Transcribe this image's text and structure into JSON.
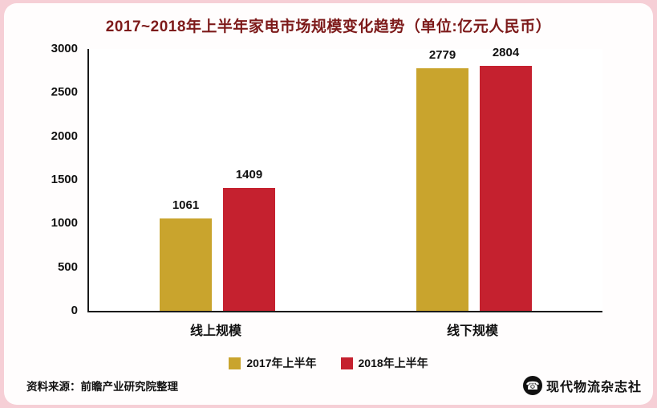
{
  "page": {
    "background": "#f6cfd6",
    "panel_background": "#fffdfd"
  },
  "chart_data": {
    "type": "bar",
    "title": "2017~2018年上半年家电市场规模变化趋势（单位:亿元人民币）",
    "title_color": "#7d1a1a",
    "categories": [
      "线上规模",
      "线下规模"
    ],
    "series": [
      {
        "name": "2017年上半年",
        "color": "#c9a42d",
        "values": [
          1061,
          2779
        ]
      },
      {
        "name": "2018年上半年",
        "color": "#c5212f",
        "values": [
          1409,
          2804
        ]
      }
    ],
    "ylim": [
      0,
      3000
    ],
    "yticks": [
      0,
      500,
      1000,
      1500,
      2000,
      2500,
      3000
    ],
    "grid": false,
    "legend_position": "bottom",
    "xlabel": "",
    "ylabel": ""
  },
  "footer": {
    "source": "资料来源：前瞻产业研究院整理",
    "brand": "现代物流杂志社",
    "logo_icon": "phone-in-circle-icon"
  }
}
